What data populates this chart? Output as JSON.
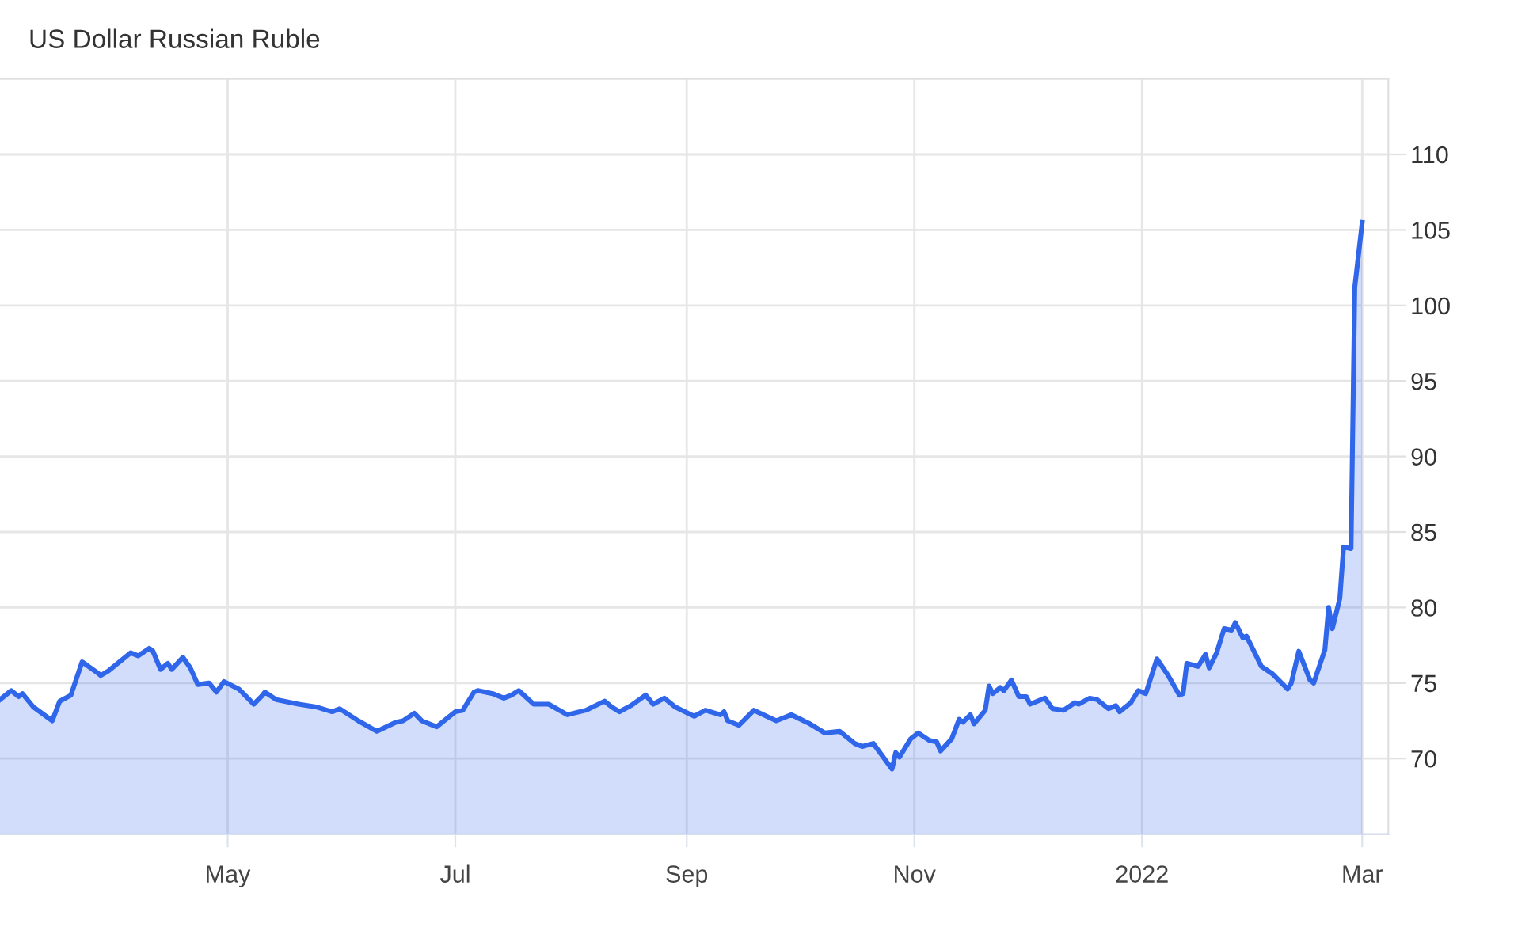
{
  "chart_data": {
    "type": "area",
    "title": "US Dollar Russian Ruble",
    "xlim": [
      "2021-03-01",
      "2022-03-08"
    ],
    "xticks": [
      {
        "value": "2021-05-01",
        "label": "May"
      },
      {
        "value": "2021-07-01",
        "label": "Jul"
      },
      {
        "value": "2021-09-01",
        "label": "Sep"
      },
      {
        "value": "2021-11-01",
        "label": "Nov"
      },
      {
        "value": "2022-01-01",
        "label": "2022"
      },
      {
        "value": "2022-03-01",
        "label": "Mar"
      }
    ],
    "ylim": [
      65,
      115
    ],
    "yticks": [
      70,
      75,
      80,
      85,
      90,
      95,
      100,
      105,
      110
    ],
    "grid": true,
    "x": [
      "2021-03-01",
      "2021-03-04",
      "2021-03-06",
      "2021-03-07",
      "2021-03-10",
      "2021-03-15",
      "2021-03-17",
      "2021-03-20",
      "2021-03-23",
      "2021-03-27",
      "2021-03-28",
      "2021-03-30",
      "2021-04-02",
      "2021-04-05",
      "2021-04-07",
      "2021-04-10",
      "2021-04-11",
      "2021-04-13",
      "2021-04-15",
      "2021-04-16",
      "2021-04-19",
      "2021-04-21",
      "2021-04-23",
      "2021-04-26",
      "2021-04-28",
      "2021-04-30",
      "2021-05-04",
      "2021-05-08",
      "2021-05-10",
      "2021-05-11",
      "2021-05-14",
      "2021-05-20",
      "2021-05-25",
      "2021-05-29",
      "2021-05-31",
      "2021-06-05",
      "2021-06-10",
      "2021-06-15",
      "2021-06-17",
      "2021-06-20",
      "2021-06-22",
      "2021-06-26",
      "2021-06-29",
      "2021-07-01",
      "2021-07-03",
      "2021-07-06",
      "2021-07-07",
      "2021-07-11",
      "2021-07-14",
      "2021-07-16",
      "2021-07-18",
      "2021-07-22",
      "2021-07-26",
      "2021-07-31",
      "2021-08-05",
      "2021-08-10",
      "2021-08-12",
      "2021-08-14",
      "2021-08-17",
      "2021-08-21",
      "2021-08-23",
      "2021-08-26",
      "2021-08-29",
      "2021-09-03",
      "2021-09-06",
      "2021-09-10",
      "2021-09-11",
      "2021-09-12",
      "2021-09-15",
      "2021-09-19",
      "2021-09-25",
      "2021-09-29",
      "2021-10-04",
      "2021-10-08",
      "2021-10-12",
      "2021-10-16",
      "2021-10-18",
      "2021-10-21",
      "2021-10-26",
      "2021-10-27",
      "2021-10-28",
      "2021-10-31",
      "2021-11-02",
      "2021-11-05",
      "2021-11-07",
      "2021-11-08",
      "2021-11-11",
      "2021-11-13",
      "2021-11-14",
      "2021-11-16",
      "2021-11-17",
      "2021-11-20",
      "2021-11-21",
      "2021-11-22",
      "2021-11-24",
      "2021-11-25",
      "2021-11-27",
      "2021-11-29",
      "2021-12-01",
      "2021-12-02",
      "2021-12-06",
      "2021-12-08",
      "2021-12-11",
      "2021-12-14",
      "2021-12-15",
      "2021-12-18",
      "2021-12-20",
      "2021-12-23",
      "2021-12-25",
      "2021-12-26",
      "2021-12-29",
      "2021-12-31",
      "2022-01-02",
      "2022-01-05",
      "2022-01-08",
      "2022-01-11",
      "2022-01-12",
      "2022-01-13",
      "2022-01-16",
      "2022-01-18",
      "2022-01-19",
      "2022-01-21",
      "2022-01-23",
      "2022-01-25",
      "2022-01-26",
      "2022-01-28",
      "2022-01-29",
      "2022-02-02",
      "2022-02-05",
      "2022-02-09",
      "2022-02-10",
      "2022-02-12",
      "2022-02-15",
      "2022-02-16",
      "2022-02-19",
      "2022-02-20",
      "2022-02-21",
      "2022-02-23",
      "2022-02-24",
      "2022-02-26",
      "2022-02-27",
      "2022-03-01"
    ],
    "series": [
      {
        "color": "#2f66ea",
        "values": [
          73.9,
          74.5,
          74.1,
          74.3,
          73.4,
          72.5,
          73.8,
          74.2,
          76.4,
          75.7,
          75.5,
          75.8,
          76.4,
          77.0,
          76.8,
          77.3,
          77.1,
          75.9,
          76.3,
          75.9,
          76.7,
          76.0,
          74.9,
          75.0,
          74.4,
          75.1,
          74.6,
          73.6,
          74.1,
          74.4,
          73.9,
          73.6,
          73.4,
          73.1,
          73.3,
          72.5,
          71.8,
          72.4,
          72.5,
          73.0,
          72.5,
          72.1,
          72.7,
          73.1,
          73.2,
          74.4,
          74.5,
          74.3,
          74.0,
          74.2,
          74.5,
          73.6,
          73.6,
          72.9,
          73.2,
          73.8,
          73.4,
          73.1,
          73.5,
          74.2,
          73.6,
          74.0,
          73.4,
          72.8,
          73.2,
          72.9,
          73.1,
          72.5,
          72.2,
          73.2,
          72.5,
          72.9,
          72.3,
          71.7,
          71.8,
          71.0,
          70.8,
          71.0,
          69.3,
          70.4,
          70.1,
          71.3,
          71.7,
          71.2,
          71.1,
          70.5,
          71.3,
          72.6,
          72.4,
          72.9,
          72.3,
          73.2,
          74.8,
          74.3,
          74.7,
          74.5,
          75.2,
          74.1,
          74.1,
          73.6,
          74.0,
          73.3,
          73.2,
          73.7,
          73.6,
          74.0,
          73.9,
          73.3,
          73.5,
          73.1,
          73.7,
          74.5,
          74.3,
          76.6,
          75.5,
          74.2,
          74.3,
          76.3,
          76.1,
          76.9,
          76.0,
          77.0,
          78.6,
          78.5,
          79.0,
          78.0,
          78.1,
          76.1,
          75.6,
          74.6,
          75.0,
          77.1,
          75.2,
          75.0,
          77.2,
          80.0,
          78.6,
          80.6,
          84.0,
          83.9,
          101.2,
          105.5
        ]
      }
    ]
  }
}
